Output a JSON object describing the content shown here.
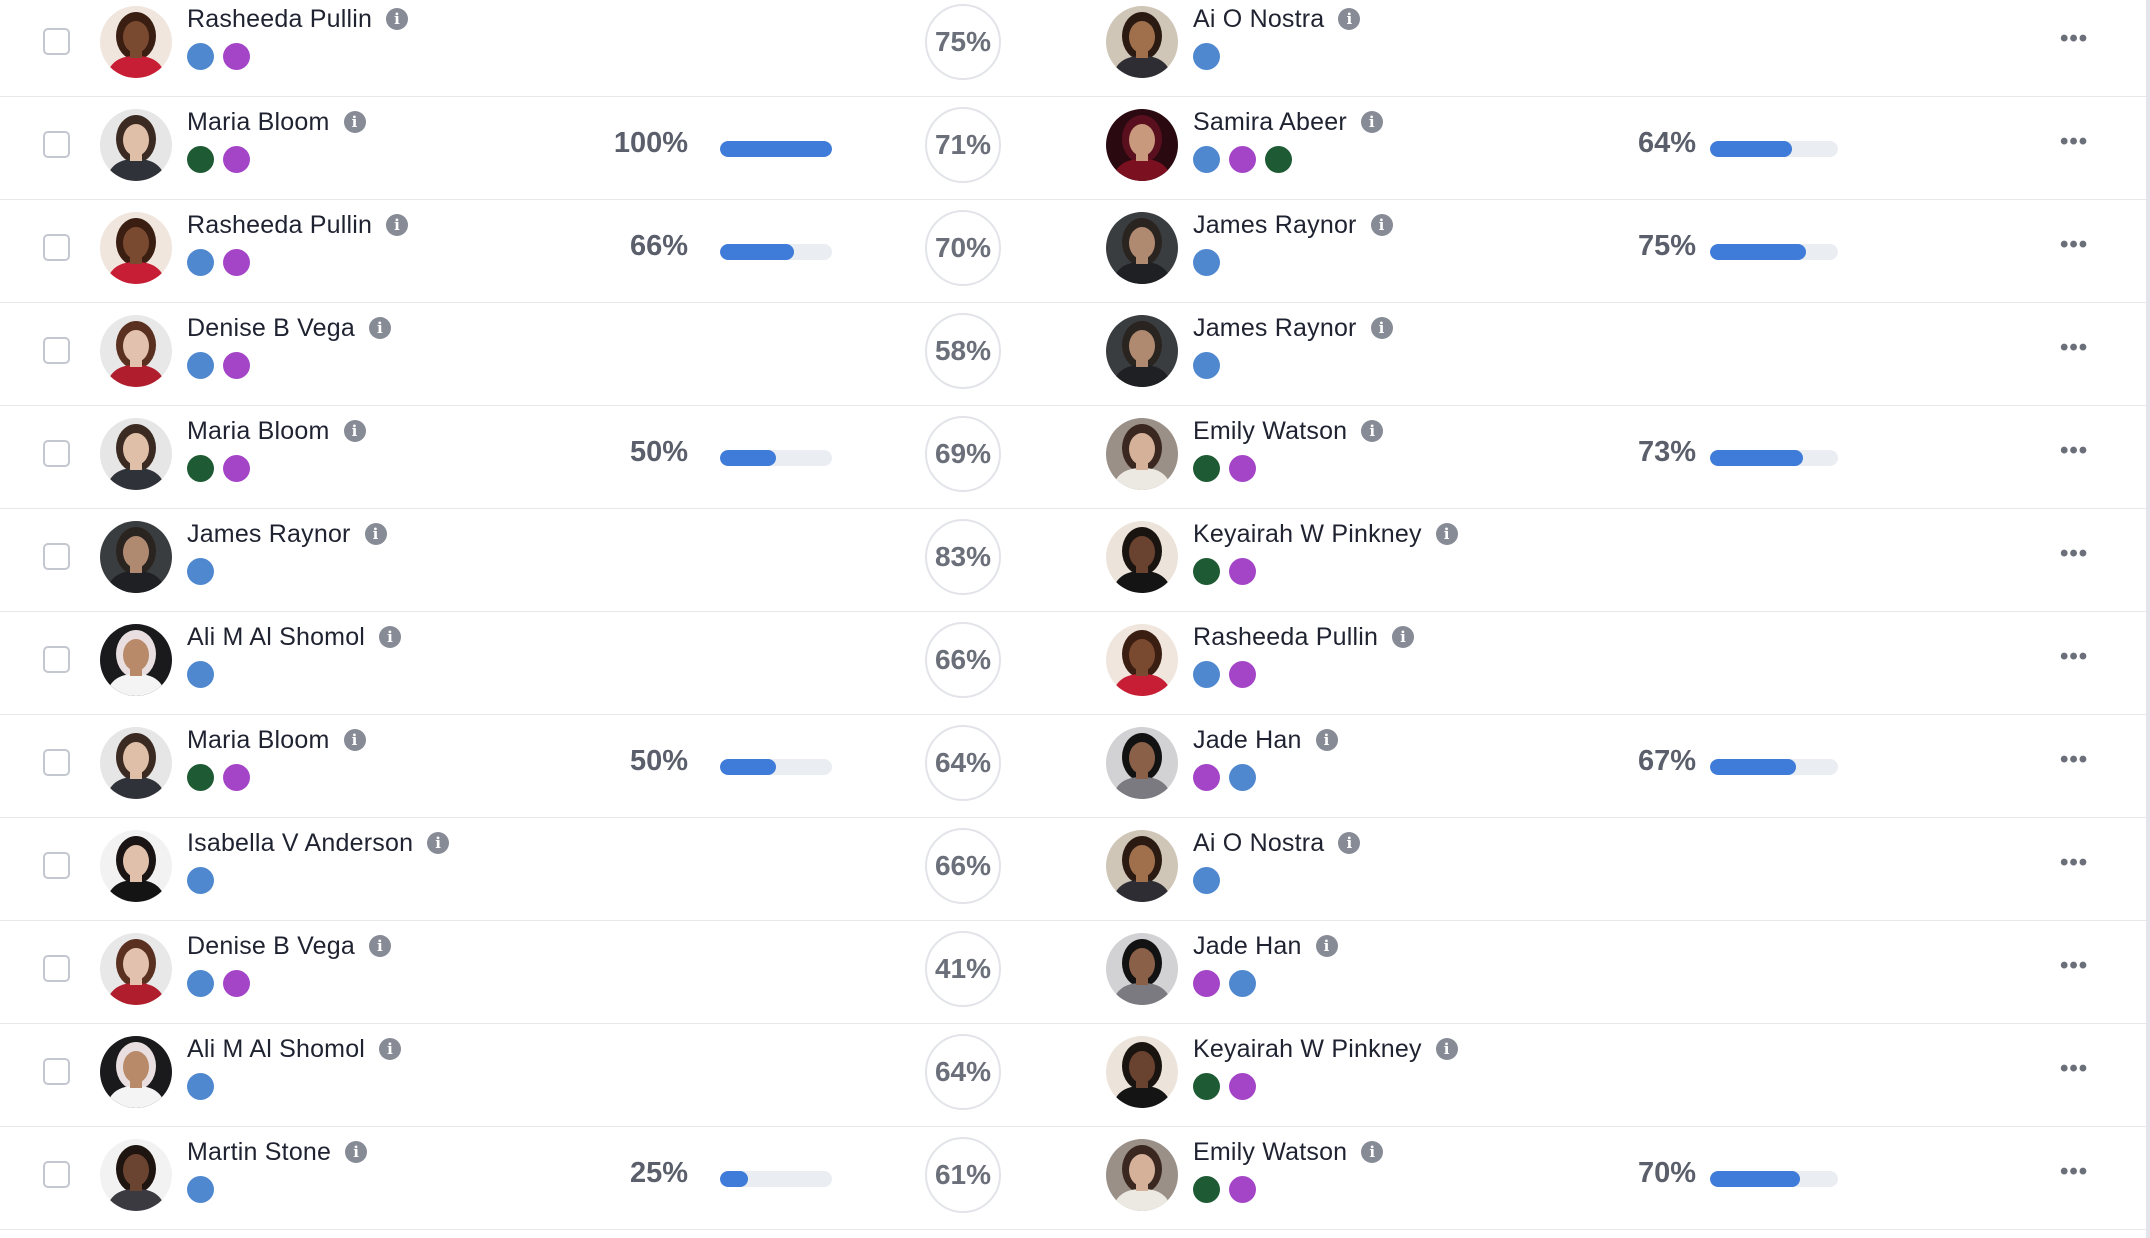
{
  "colors": {
    "blue": "#4f88cf",
    "purple": "#a445c7",
    "green": "#1e5a33",
    "bar_fill": "#3f7bd8",
    "bar_track": "#eaedf2"
  },
  "icons": {
    "info": "info-icon",
    "more": "more-horizontal-icon",
    "info_glyph": "i",
    "more_glyph": "•••"
  },
  "rows": [
    {
      "a": {
        "name": "Rasheeda Pullin",
        "dots": [
          "blue",
          "purple"
        ],
        "skin": "#7a4a30",
        "hair": "#3a1e12",
        "shirt": "#c81e35",
        "bg": "#f0e6de"
      },
      "a_progress": null,
      "match": "75%",
      "b": {
        "name": "Ai O Nostra",
        "dots": [
          "blue"
        ],
        "skin": "#a0704d",
        "hair": "#2a1a12",
        "shirt": "#2d2d33",
        "bg": "#cfc6b8"
      },
      "b_progress": null
    },
    {
      "a": {
        "name": "Maria Bloom",
        "dots": [
          "green",
          "purple"
        ],
        "skin": "#dfbfa8",
        "hair": "#3b2a22",
        "shirt": "#2f3238",
        "bg": "#e6e6e6"
      },
      "a_progress": {
        "label": "100%",
        "value": 100
      },
      "match": "71%",
      "b": {
        "name": "Samira Abeer",
        "dots": [
          "blue",
          "purple",
          "green"
        ],
        "skin": "#c8997c",
        "hair": "#5a0f1e",
        "shirt": "#7a1020",
        "bg": "#2a0a10"
      },
      "b_progress": {
        "label": "64%",
        "value": 64
      }
    },
    {
      "a": {
        "name": "Rasheeda Pullin",
        "dots": [
          "blue",
          "purple"
        ],
        "skin": "#7a4a30",
        "hair": "#3a1e12",
        "shirt": "#c81e35",
        "bg": "#f0e6de"
      },
      "a_progress": {
        "label": "66%",
        "value": 66
      },
      "match": "70%",
      "b": {
        "name": "James Raynor",
        "dots": [
          "blue"
        ],
        "skin": "#b08a70",
        "hair": "#2a2420",
        "shirt": "#1e2024",
        "bg": "#3a3d40"
      },
      "b_progress": {
        "label": "75%",
        "value": 75
      }
    },
    {
      "a": {
        "name": "Denise B Vega",
        "dots": [
          "blue",
          "purple"
        ],
        "skin": "#e2c2ae",
        "hair": "#5a3020",
        "shirt": "#b01e2e",
        "bg": "#e8e8e8"
      },
      "a_progress": null,
      "match": "58%",
      "b": {
        "name": "James Raynor",
        "dots": [
          "blue"
        ],
        "skin": "#b08a70",
        "hair": "#2a2420",
        "shirt": "#1e2024",
        "bg": "#3a3d40"
      },
      "b_progress": null
    },
    {
      "a": {
        "name": "Maria Bloom",
        "dots": [
          "green",
          "purple"
        ],
        "skin": "#dfbfa8",
        "hair": "#3b2a22",
        "shirt": "#2f3238",
        "bg": "#e6e6e6"
      },
      "a_progress": {
        "label": "50%",
        "value": 50
      },
      "match": "69%",
      "b": {
        "name": "Emily Watson",
        "dots": [
          "green",
          "purple"
        ],
        "skin": "#d6b19a",
        "hair": "#3a2820",
        "shirt": "#ece8e2",
        "bg": "#9a9088"
      },
      "b_progress": {
        "label": "73%",
        "value": 73
      }
    },
    {
      "a": {
        "name": "James Raynor",
        "dots": [
          "blue"
        ],
        "skin": "#b08a70",
        "hair": "#2a2420",
        "shirt": "#1e2024",
        "bg": "#3a3d40"
      },
      "a_progress": null,
      "match": "83%",
      "b": {
        "name": "Keyairah W Pinkney",
        "dots": [
          "green",
          "purple"
        ],
        "skin": "#6a4230",
        "hair": "#1a1410",
        "shirt": "#141414",
        "bg": "#ece4da"
      },
      "b_progress": null
    },
    {
      "a": {
        "name": "Ali M Al Shomol",
        "dots": [
          "blue"
        ],
        "skin": "#b98a6a",
        "hair": "#e9dfe0",
        "shirt": "#f4f4f4",
        "bg": "#1a1a1c"
      },
      "a_progress": null,
      "match": "66%",
      "b": {
        "name": "Rasheeda Pullin",
        "dots": [
          "blue",
          "purple"
        ],
        "skin": "#7a4a30",
        "hair": "#3a1e12",
        "shirt": "#c81e35",
        "bg": "#f0e6de"
      },
      "b_progress": null
    },
    {
      "a": {
        "name": "Maria Bloom",
        "dots": [
          "green",
          "purple"
        ],
        "skin": "#dfbfa8",
        "hair": "#3b2a22",
        "shirt": "#2f3238",
        "bg": "#e6e6e6"
      },
      "a_progress": {
        "label": "50%",
        "value": 50
      },
      "match": "64%",
      "b": {
        "name": "Jade Han",
        "dots": [
          "purple",
          "blue"
        ],
        "skin": "#8a6048",
        "hair": "#121212",
        "shirt": "#7a7a80",
        "bg": "#d2d2d4"
      },
      "b_progress": {
        "label": "67%",
        "value": 67
      }
    },
    {
      "a": {
        "name": "Isabella V Anderson",
        "dots": [
          "blue"
        ],
        "skin": "#e0c0aa",
        "hair": "#1a1414",
        "shirt": "#141414",
        "bg": "#f2f2f2"
      },
      "a_progress": null,
      "match": "66%",
      "b": {
        "name": "Ai O Nostra",
        "dots": [
          "blue"
        ],
        "skin": "#a0704d",
        "hair": "#2a1a12",
        "shirt": "#2d2d33",
        "bg": "#cfc6b8"
      },
      "b_progress": null
    },
    {
      "a": {
        "name": "Denise B Vega",
        "dots": [
          "blue",
          "purple"
        ],
        "skin": "#e2c2ae",
        "hair": "#5a3020",
        "shirt": "#b01e2e",
        "bg": "#e8e8e8"
      },
      "a_progress": null,
      "match": "41%",
      "b": {
        "name": "Jade Han",
        "dots": [
          "purple",
          "blue"
        ],
        "skin": "#8a6048",
        "hair": "#121212",
        "shirt": "#7a7a80",
        "bg": "#d2d2d4"
      },
      "b_progress": null
    },
    {
      "a": {
        "name": "Ali M Al Shomol",
        "dots": [
          "blue"
        ],
        "skin": "#b98a6a",
        "hair": "#e9dfe0",
        "shirt": "#f4f4f4",
        "bg": "#1a1a1c"
      },
      "a_progress": null,
      "match": "64%",
      "b": {
        "name": "Keyairah W Pinkney",
        "dots": [
          "green",
          "purple"
        ],
        "skin": "#6a4230",
        "hair": "#1a1410",
        "shirt": "#141414",
        "bg": "#ece4da"
      },
      "b_progress": null
    },
    {
      "a": {
        "name": "Martin Stone",
        "dots": [
          "blue"
        ],
        "skin": "#6a4430",
        "hair": "#1e1410",
        "shirt": "#3a3a40",
        "bg": "#f2f2f2"
      },
      "a_progress": {
        "label": "25%",
        "value": 25
      },
      "match": "61%",
      "b": {
        "name": "Emily Watson",
        "dots": [
          "green",
          "purple"
        ],
        "skin": "#d6b19a",
        "hair": "#3a2820",
        "shirt": "#ece8e2",
        "bg": "#9a9088"
      },
      "b_progress": {
        "label": "70%",
        "value": 70
      }
    }
  ]
}
